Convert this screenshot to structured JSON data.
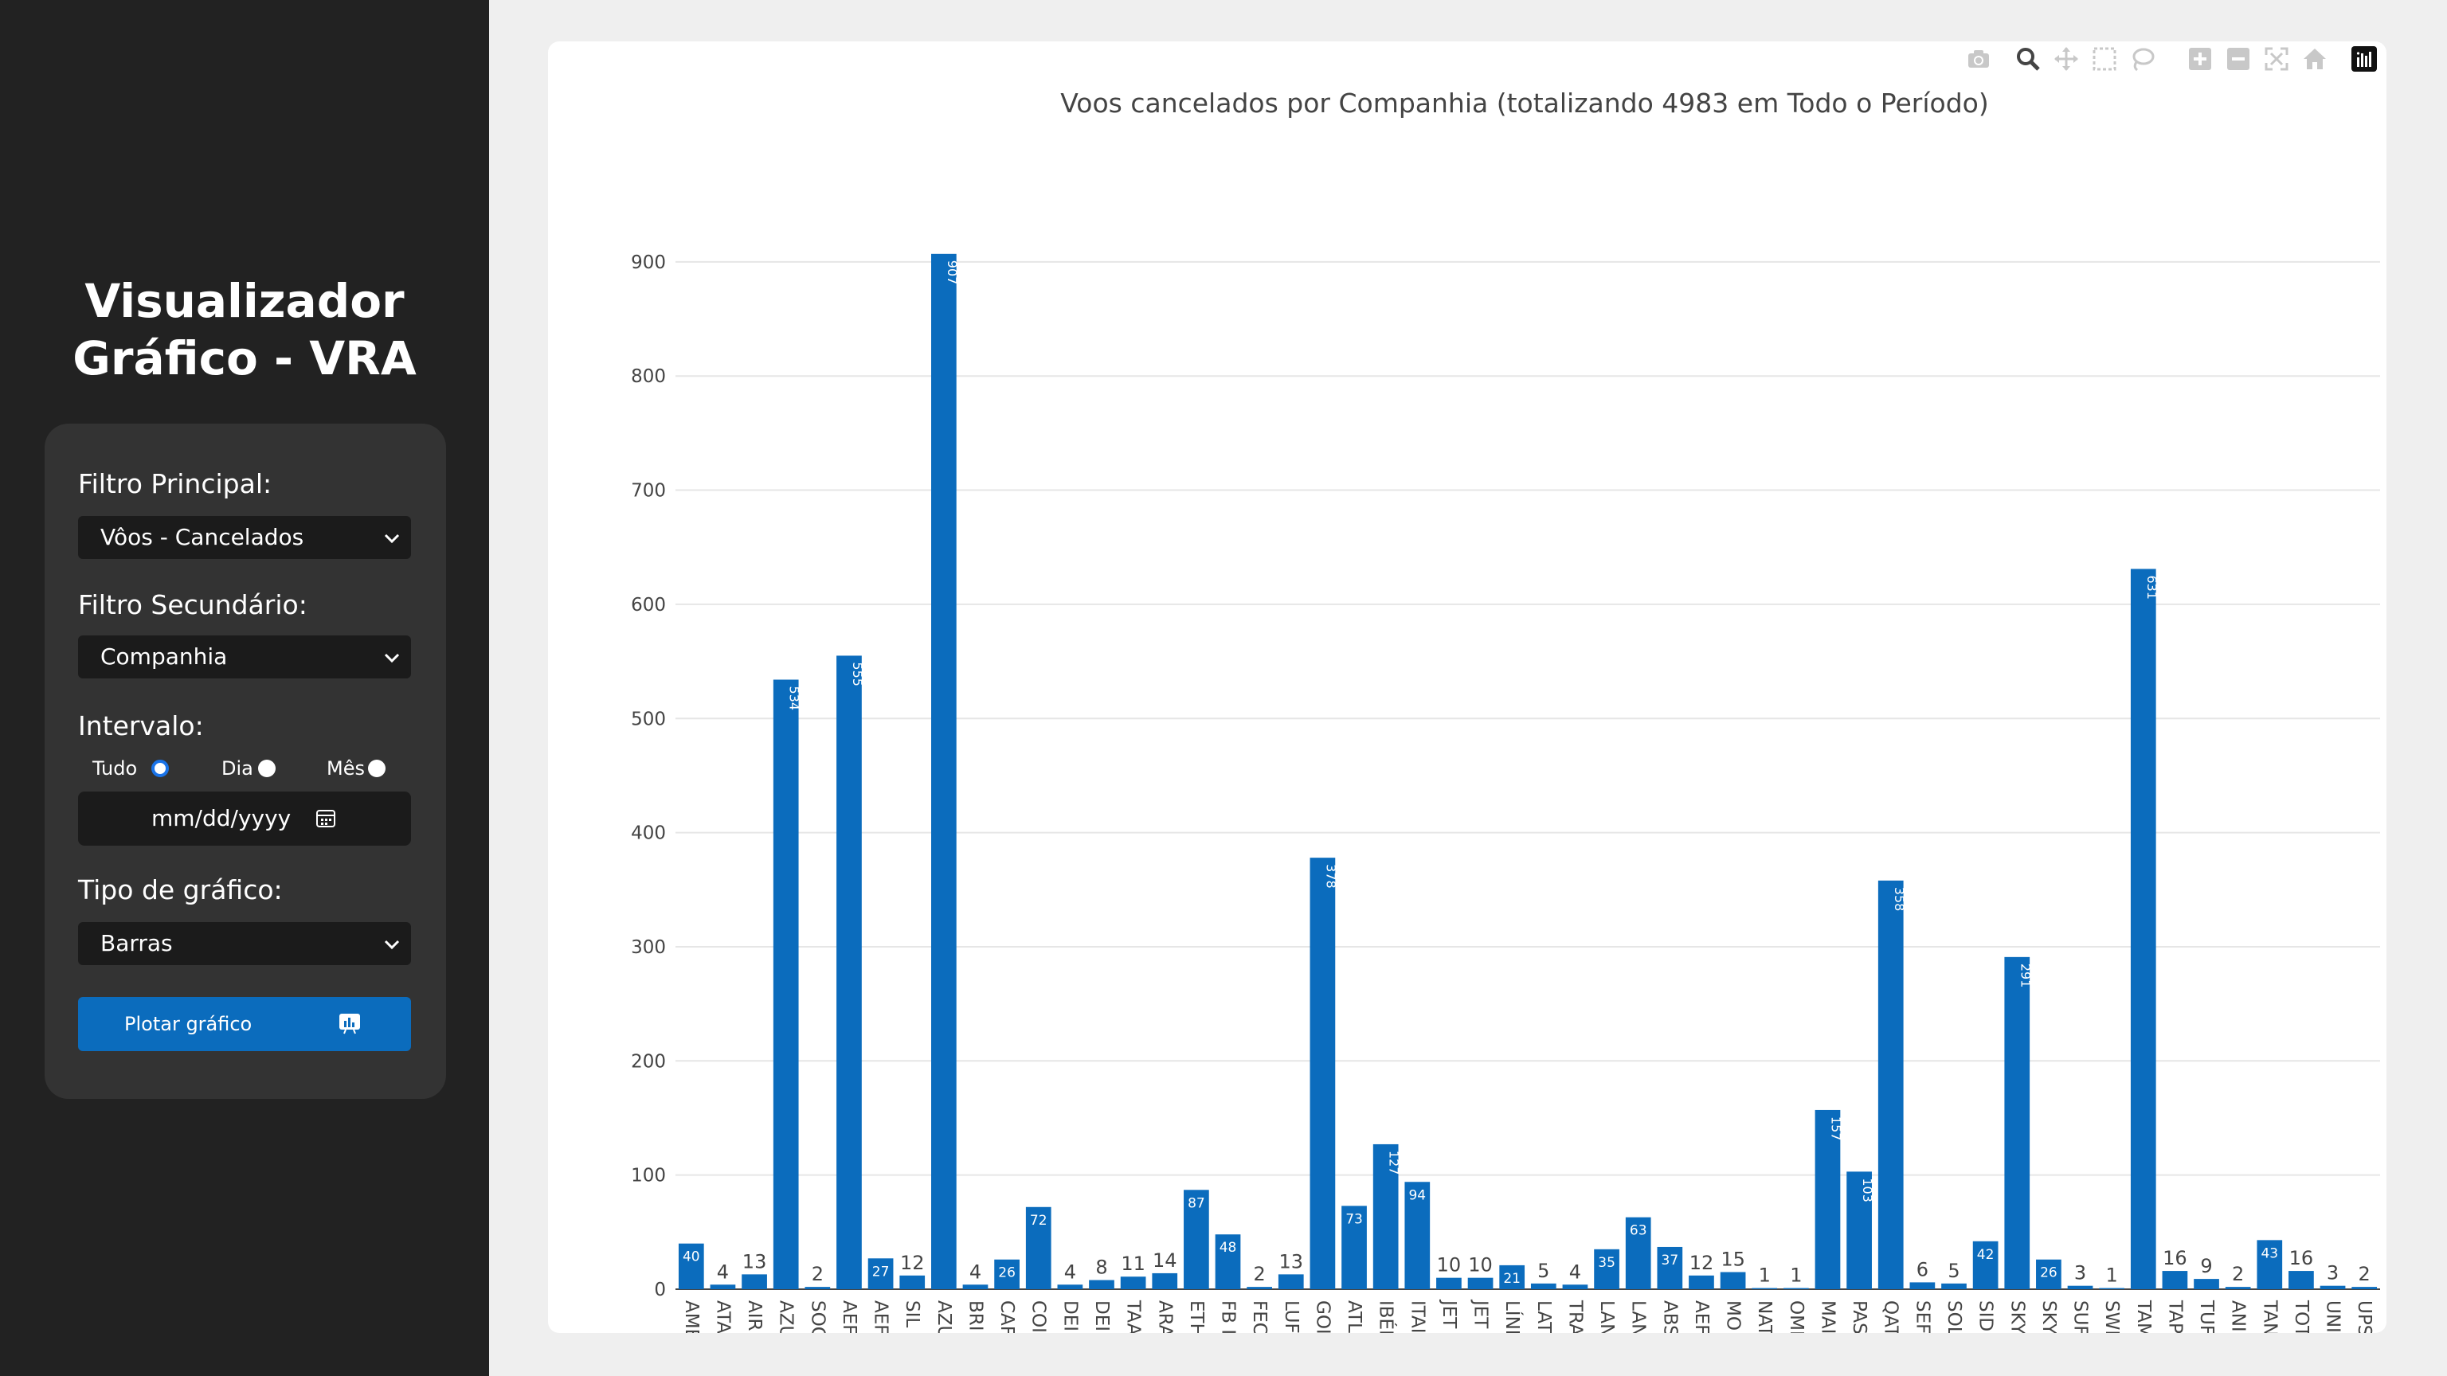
{
  "sidebar": {
    "title_line1": "Visualizador",
    "title_line2": "Gráfico - VRA",
    "filtro_principal_label": "Filtro Principal:",
    "filtro_principal_value": "Vôos - Cancelados",
    "filtro_secundario_label": "Filtro Secundário:",
    "filtro_secundario_value": "Companhia",
    "intervalo_label": "Intervalo:",
    "radio_options": [
      "Tudo",
      "Dia",
      "Mês"
    ],
    "radio_selected": "Tudo",
    "date_placeholder": "mm/dd/yyyy",
    "tipo_label": "Tipo de gráfico:",
    "tipo_value": "Barras",
    "plot_button": "Plotar gráfico",
    "accent_color": "#0b6cbd"
  },
  "modebar": {
    "icons": [
      "camera-icon",
      "zoom-icon",
      "pan-icon",
      "box-select-icon",
      "lasso-icon",
      "zoom-in-icon",
      "zoom-out-icon",
      "autoscale-icon",
      "home-icon",
      "plotly-logo-icon"
    ]
  },
  "chart_data": {
    "type": "bar",
    "title": "Voos cancelados por Companhia (totalizando 4983 em Todo o Período)",
    "xlabel": "",
    "ylabel": "",
    "ylim": [
      0,
      950
    ],
    "yticks": [
      0,
      100,
      200,
      300,
      400,
      500,
      600,
      700,
      800,
      900
    ],
    "grid": true,
    "bar_color": "#0b6cbd",
    "categories": [
      "AME",
      "ATA",
      "AIR",
      "AZU",
      "SOC",
      "AEF",
      "AEF",
      "SIL",
      "AZU",
      "BRI",
      "CAF",
      "COI",
      "DEI",
      "DEI",
      "TAA",
      "ARA",
      "ETH",
      "FB I",
      "FEC",
      "LUF",
      "GOI",
      "ATL",
      "IBÉI",
      "ITAI",
      "JET",
      "JET",
      "LÍNI",
      "LAT",
      "TRA",
      "LAN",
      "LAN",
      "ABS",
      "AEF",
      "MO",
      "NAT",
      "OMI",
      "MAI",
      "PAS",
      "QAT",
      "SEF",
      "SOL",
      "SID",
      "SKY",
      "SKY",
      "SUF",
      "SWI",
      "TAM",
      "TAP",
      "TUF",
      "ANI",
      "TAN",
      "TOT",
      "UNI",
      "UPS"
    ],
    "values": [
      40,
      4,
      13,
      534,
      2,
      555,
      27,
      12,
      907,
      4,
      26,
      72,
      4,
      8,
      11,
      14,
      87,
      48,
      2,
      13,
      378,
      73,
      127,
      94,
      10,
      10,
      21,
      5,
      4,
      35,
      63,
      37,
      12,
      15,
      1,
      1,
      157,
      103,
      358,
      6,
      5,
      42,
      291,
      26,
      3,
      1,
      631,
      16,
      9,
      2,
      43,
      16,
      3,
      2
    ]
  }
}
